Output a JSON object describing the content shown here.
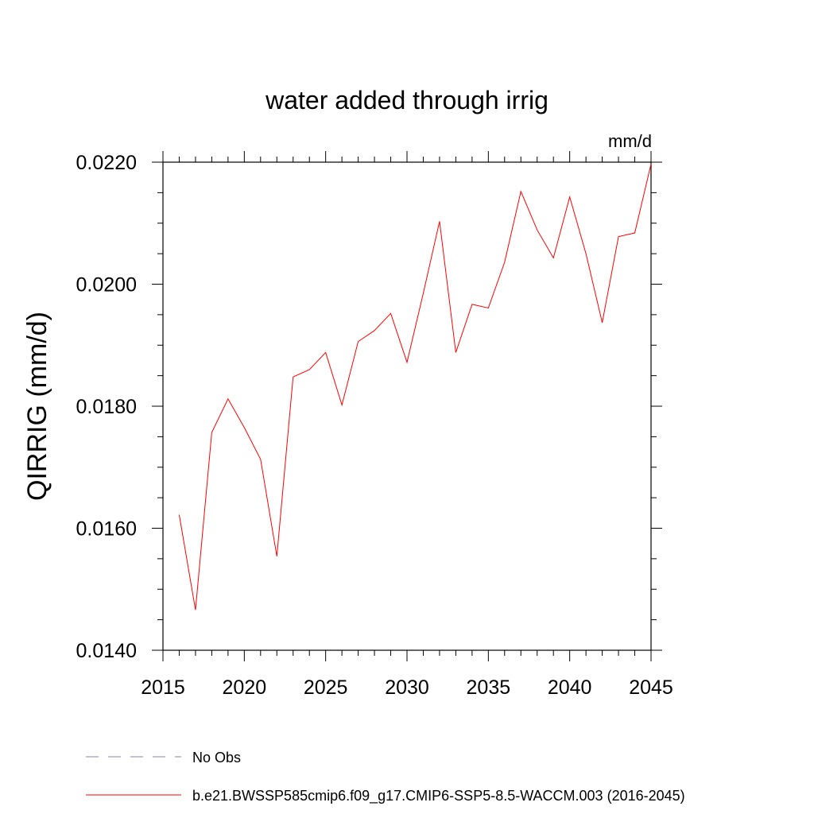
{
  "chart_data": {
    "type": "line",
    "title": "water added through irrig",
    "units": "mm/d",
    "ylabel": "QIRRIG  (mm/d)",
    "xlabel": "",
    "xlim": [
      2015,
      2045
    ],
    "ylim": [
      0.014,
      0.022
    ],
    "xticks": [
      2015,
      2020,
      2025,
      2030,
      2035,
      2040,
      2045
    ],
    "xtick_labels": [
      "2015",
      "2020",
      "2025",
      "2030",
      "2035",
      "2040",
      "2045"
    ],
    "yticks": [
      0.014,
      0.016,
      0.018,
      0.02,
      0.022
    ],
    "ytick_labels": [
      "0.0140",
      "0.0160",
      "0.0180",
      "0.0200",
      "0.0220"
    ],
    "x_minor_step": 1,
    "y_minor_step": 0.0005,
    "grid": false,
    "legend_placement": "bottom",
    "series": [
      {
        "name": "b.e21.BWSSP585cmip6.f09_g17.CMIP6-SSP5-8.5-WACCM.003 (2016-2045)",
        "color": "#ff0000",
        "style": "solid",
        "x": [
          2016,
          2017,
          2018,
          2019,
          2020,
          2021,
          2022,
          2023,
          2024,
          2025,
          2026,
          2027,
          2028,
          2029,
          2030,
          2031,
          2032,
          2033,
          2034,
          2035,
          2036,
          2037,
          2038,
          2039,
          2040,
          2041,
          2042,
          2043,
          2044,
          2045
        ],
        "y": [
          0.01622,
          0.01466,
          0.01757,
          0.01812,
          0.01765,
          0.01713,
          0.01554,
          0.01848,
          0.0186,
          0.01888,
          0.01802,
          0.01906,
          0.01924,
          0.01952,
          0.01872,
          0.01985,
          0.02103,
          0.01888,
          0.01967,
          0.01961,
          0.02036,
          0.02152,
          0.02089,
          0.02043,
          0.02143,
          0.0205,
          0.01937,
          0.02078,
          0.02084,
          0.02197
        ]
      }
    ],
    "legend": [
      {
        "label": "No Obs",
        "color": "#8080b0",
        "style": "dashed"
      },
      {
        "label": "b.e21.BWSSP585cmip6.f09_g17.CMIP6-SSP5-8.5-WACCM.003 (2016-2045)",
        "color": "#ff0000",
        "style": "solid"
      }
    ]
  }
}
